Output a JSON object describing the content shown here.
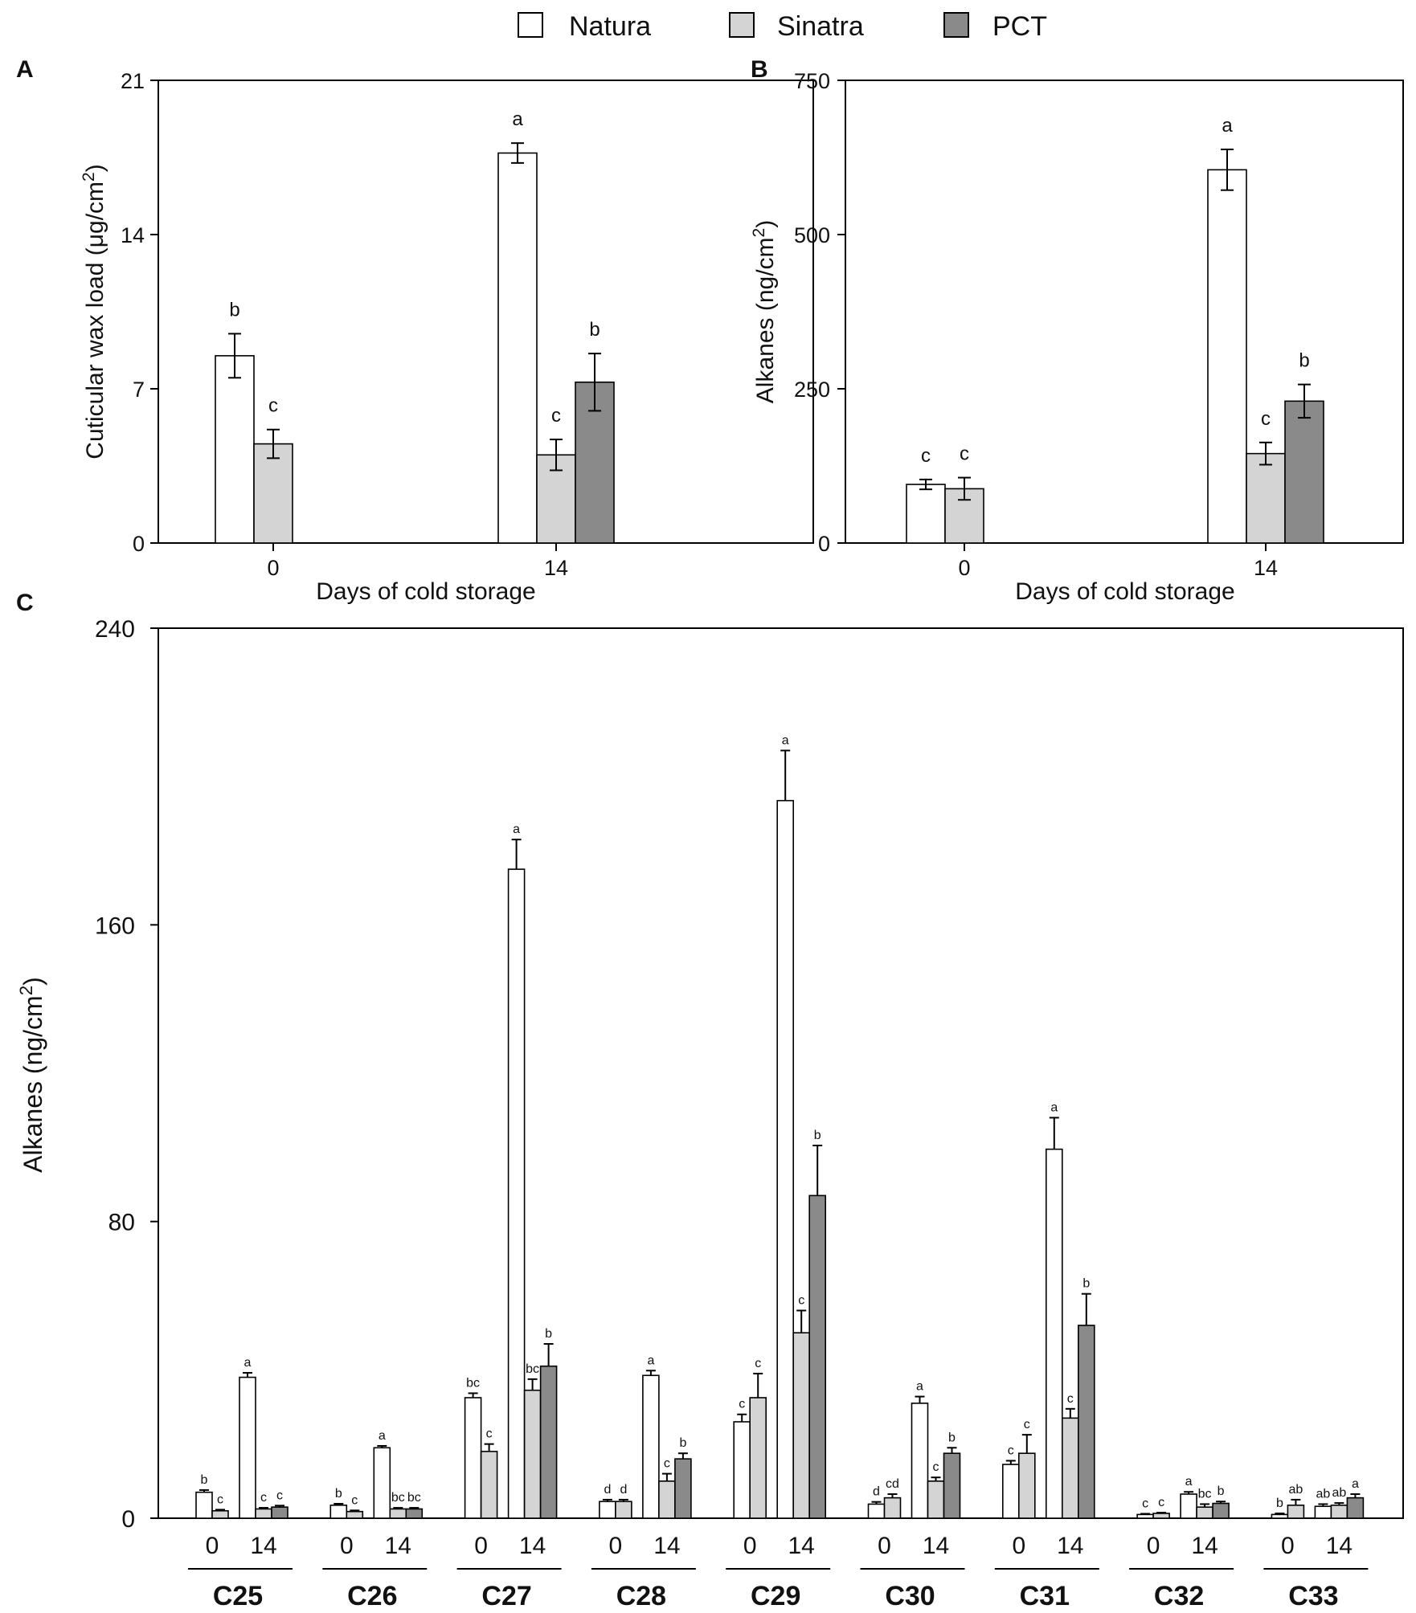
{
  "legend": [
    {
      "name": "Natura",
      "color": "#ffffff"
    },
    {
      "name": "Sinatra",
      "color": "#d4d4d4"
    },
    {
      "name": "PCT",
      "color": "#8a8a8a"
    }
  ],
  "chart_data": [
    {
      "panel": "A",
      "type": "bar",
      "ylabel": "Cuticular wax load (μg/cm2)",
      "xlabel": "Days of cold storage",
      "ylim": [
        0,
        21
      ],
      "yticks": [
        "0",
        "7",
        "14",
        "21"
      ],
      "categories": [
        "0",
        "14"
      ],
      "series": [
        {
          "name": "Natura",
          "values": [
            8.5,
            17.7
          ],
          "errors": [
            1.0,
            0.45
          ],
          "letters": [
            "b",
            "a"
          ]
        },
        {
          "name": "Sinatra",
          "values": [
            4.5,
            4.0
          ],
          "errors": [
            0.65,
            0.7
          ],
          "letters": [
            "c",
            "c"
          ]
        },
        {
          "name": "PCT",
          "values": [
            null,
            7.3
          ],
          "errors": [
            null,
            1.3
          ],
          "letters": [
            null,
            "b"
          ]
        }
      ]
    },
    {
      "panel": "B",
      "type": "bar",
      "ylabel": "Alkanes (ng/cm2)",
      "xlabel": "Days of cold storage",
      "ylim": [
        0,
        750
      ],
      "yticks": [
        "0",
        "250",
        "500",
        "750"
      ],
      "categories": [
        "0",
        "14"
      ],
      "series": [
        {
          "name": "Natura",
          "values": [
            95,
            605
          ],
          "errors": [
            8,
            33
          ],
          "letters": [
            "c",
            "a"
          ]
        },
        {
          "name": "Sinatra",
          "values": [
            88,
            145
          ],
          "errors": [
            18,
            18
          ],
          "letters": [
            "c",
            "c"
          ]
        },
        {
          "name": "PCT",
          "values": [
            null,
            230
          ],
          "errors": [
            null,
            27
          ],
          "letters": [
            null,
            "b"
          ]
        }
      ]
    },
    {
      "panel": "C",
      "type": "bar",
      "ylabel": "Alkanes (ng/cm2)",
      "ylim": [
        0,
        240
      ],
      "yticks": [
        "0",
        "80",
        "160",
        "240"
      ],
      "day_labels": [
        "0",
        "14"
      ],
      "groups": [
        {
          "name": "C25",
          "day0": {
            "Natura": [
              7,
              0.6,
              "b"
            ],
            "Sinatra": [
              2,
              0.3,
              "c"
            ]
          },
          "day14": {
            "Natura": [
              38,
              1.2,
              "a"
            ],
            "Sinatra": [
              2.5,
              0.3,
              "c"
            ],
            "PCT": [
              3,
              0.4,
              "c"
            ]
          }
        },
        {
          "name": "C26",
          "day0": {
            "Natura": [
              3.5,
              0.4,
              "b"
            ],
            "Sinatra": [
              1.8,
              0.3,
              "c"
            ]
          },
          "day14": {
            "Natura": [
              19,
              0.5,
              "a"
            ],
            "Sinatra": [
              2.5,
              0.3,
              "bc"
            ],
            "PCT": [
              2.5,
              0.3,
              "bc"
            ]
          }
        },
        {
          "name": "C27",
          "day0": {
            "Natura": [
              32.5,
              1.2,
              "bc"
            ],
            "Sinatra": [
              18,
              2,
              "c"
            ]
          },
          "day14": {
            "Natura": [
              175,
              8,
              "a"
            ],
            "Sinatra": [
              34.5,
              3,
              "bc"
            ],
            "PCT": [
              41,
              6,
              "b"
            ]
          }
        },
        {
          "name": "C28",
          "day0": {
            "Natura": [
              4.5,
              0.5,
              "d"
            ],
            "Sinatra": [
              4.5,
              0.5,
              "d"
            ]
          },
          "day14": {
            "Natura": [
              38.5,
              1.3,
              "a"
            ],
            "Sinatra": [
              10,
              2,
              "c"
            ],
            "PCT": [
              16,
              1.5,
              "b"
            ]
          }
        },
        {
          "name": "C29",
          "day0": {
            "Natura": [
              26,
              2,
              "c"
            ],
            "Sinatra": [
              32.5,
              6.5,
              "c"
            ]
          },
          "day14": {
            "Natura": [
              193.5,
              13.5,
              "a"
            ],
            "Sinatra": [
              50,
              6,
              "c"
            ],
            "PCT": [
              87,
              13.5,
              "b"
            ]
          }
        },
        {
          "name": "C30",
          "day0": {
            "Natura": [
              3.8,
              0.6,
              "d"
            ],
            "Sinatra": [
              5.5,
              1,
              "cd"
            ]
          },
          "day14": {
            "Natura": [
              31,
              1.8,
              "a"
            ],
            "Sinatra": [
              10,
              1,
              "c"
            ],
            "PCT": [
              17.5,
              1.5,
              "b"
            ]
          }
        },
        {
          "name": "C31",
          "day0": {
            "Natura": [
              14.5,
              1,
              "c"
            ],
            "Sinatra": [
              17.5,
              5,
              "c"
            ]
          },
          "day14": {
            "Natura": [
              99.5,
              8.5,
              "a"
            ],
            "Sinatra": [
              27,
              2.5,
              "c"
            ],
            "PCT": [
              52,
              8.5,
              "b"
            ]
          }
        },
        {
          "name": "C32",
          "day0": {
            "Natura": [
              1,
              0.2,
              "c"
            ],
            "Sinatra": [
              1.3,
              0.2,
              "c"
            ]
          },
          "day14": {
            "Natura": [
              6.5,
              0.6,
              "a"
            ],
            "Sinatra": [
              3,
              0.8,
              "bc"
            ],
            "PCT": [
              4,
              0.5,
              "b"
            ]
          }
        },
        {
          "name": "C33",
          "day0": {
            "Natura": [
              1,
              0.3,
              "b"
            ],
            "Sinatra": [
              3.5,
              1.5,
              "ab"
            ]
          },
          "day14": {
            "Natura": [
              3.2,
              0.6,
              "ab"
            ],
            "Sinatra": [
              3.5,
              0.6,
              "ab"
            ],
            "PCT": [
              5.5,
              1,
              "a"
            ]
          }
        }
      ]
    }
  ]
}
